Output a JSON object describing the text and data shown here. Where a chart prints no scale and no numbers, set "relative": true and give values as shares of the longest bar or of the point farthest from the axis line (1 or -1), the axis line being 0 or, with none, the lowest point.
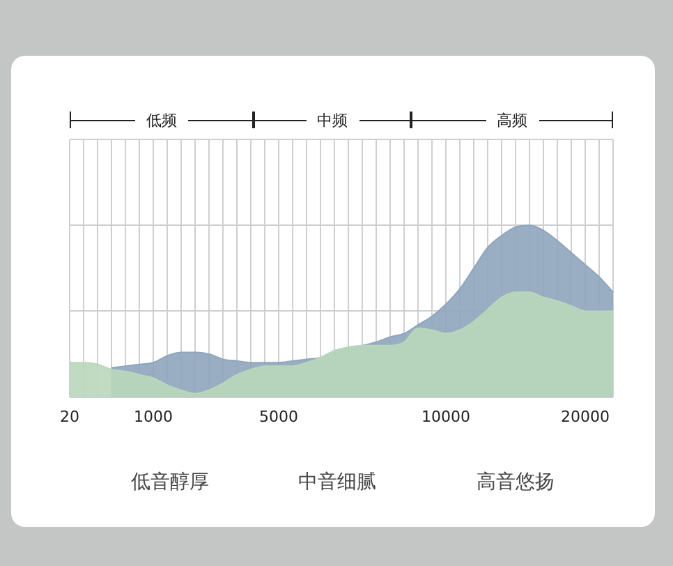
{
  "chart_data": {
    "type": "area",
    "relative": true,
    "grid": true,
    "categories": [
      "20",
      null,
      null,
      null,
      null,
      null,
      "1000",
      null,
      null,
      null,
      null,
      null,
      null,
      null,
      null,
      "5000",
      null,
      null,
      null,
      null,
      null,
      null,
      null,
      null,
      null,
      null,
      null,
      "10000",
      null,
      null,
      null,
      null,
      null,
      null,
      null,
      null,
      null,
      "20000",
      null,
      null
    ],
    "series": [
      {
        "color": "#8fa5bd",
        "values": [
          null,
          null,
          null,
          0.17,
          0.18,
          0.19,
          0.2,
          0.24,
          0.26,
          0.26,
          0.25,
          0.22,
          0.21,
          0.2,
          0.2,
          0.2,
          0.21,
          0.22,
          0.23,
          0.27,
          0.29,
          0.3,
          0.32,
          0.35,
          0.37,
          0.42,
          0.47,
          0.54,
          0.63,
          0.75,
          0.87,
          0.94,
          0.99,
          1,
          0.97,
          0.91,
          0.84,
          0.77,
          0.7,
          0.61
        ]
      },
      {
        "color": "#b9d7bb",
        "values": [
          0.2,
          0.2,
          0.19,
          0.16,
          0.15,
          0.13,
          0.11,
          0.07,
          0.04,
          0.02,
          0.04,
          0.08,
          0.13,
          0.16,
          0.18,
          0.18,
          0.18,
          0.2,
          0.23,
          0.27,
          0.29,
          0.3,
          0.3,
          0.3,
          0.32,
          0.4,
          0.39,
          0.37,
          0.39,
          0.44,
          0.51,
          0.58,
          0.61,
          0.61,
          0.58,
          0.56,
          0.53,
          0.5,
          0.5,
          0.5
        ]
      }
    ],
    "annotations": [
      "低频",
      "中频",
      "高频",
      "低音醇厚",
      "中音细腻",
      "高音悠扬"
    ]
  }
}
